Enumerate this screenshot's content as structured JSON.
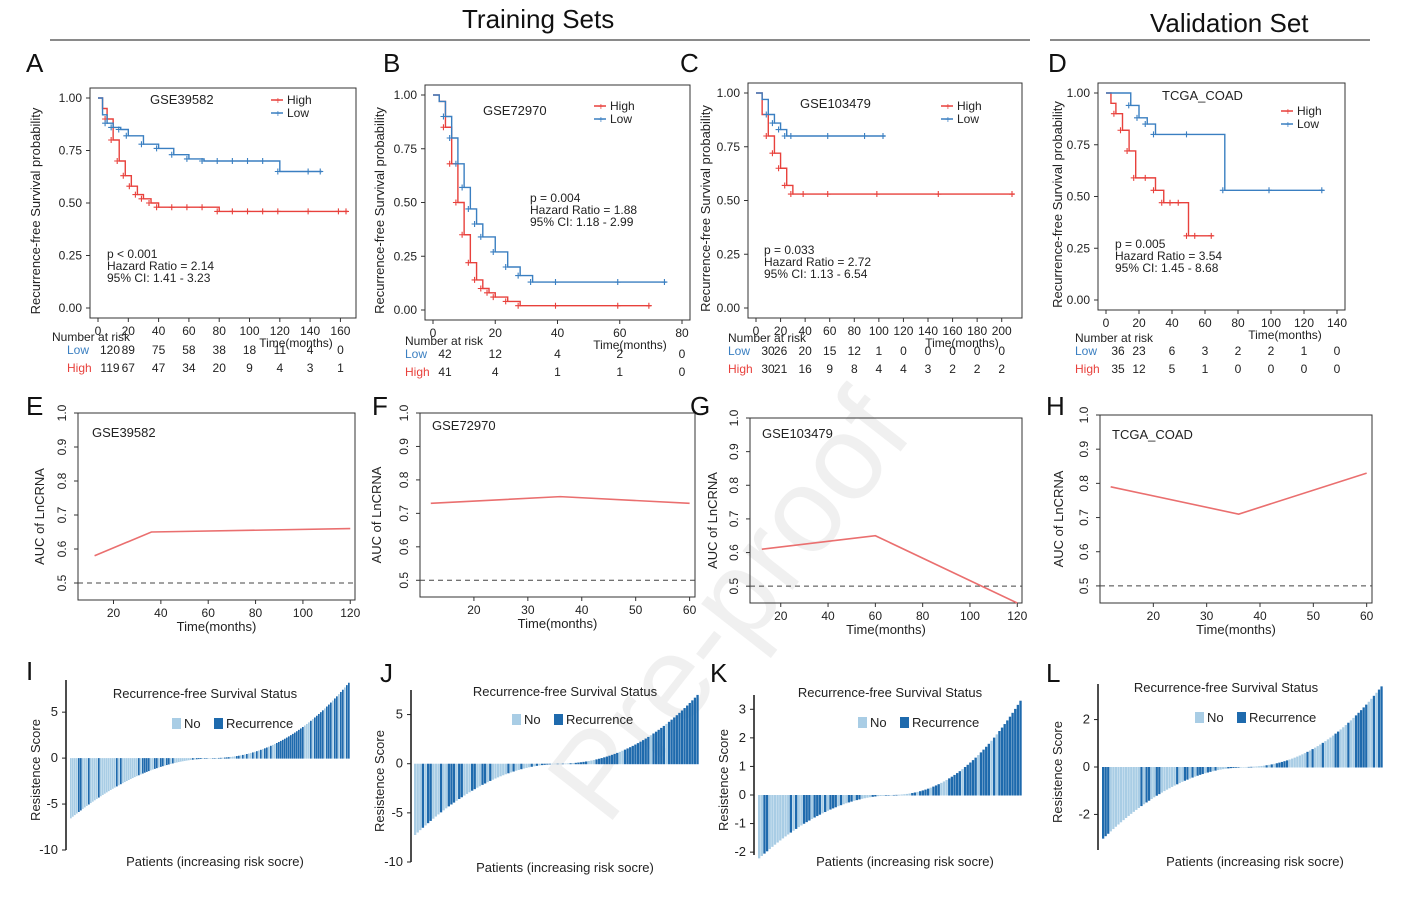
{
  "header": {
    "training_title": "Training Sets",
    "validation_title": "Validation Set"
  },
  "watermark": "Pre-proof",
  "colors": {
    "high": "#e8413c",
    "low": "#3a7fc1",
    "bar_no": "#a9cde5",
    "bar_rec": "#1e6aad",
    "auc": "#ea6f6f"
  },
  "km_common": {
    "y_label": "Recurrence-free Survival probability",
    "x_label": "Time(months)",
    "risk_title": "Number at risk",
    "legend": [
      "High",
      "Low"
    ],
    "y_ticks": [
      "0.00",
      "0.25",
      "0.50",
      "0.75",
      "1.00"
    ]
  },
  "auc_common": {
    "y_label": "AUC of LnCRNA",
    "x_label": "Time(months)",
    "y_ticks": [
      "0.5",
      "0.6",
      "0.7",
      "0.8",
      "0.9",
      "1.0"
    ]
  },
  "wf_common": {
    "title": "Recurrence-free Survival Status",
    "legend": [
      "No",
      "Recurrence"
    ],
    "y_label": "Resistence Score",
    "x_label": "Patients (increasing risk socre)"
  },
  "chart_data": [
    {
      "panel": "A",
      "type": "line",
      "subtype": "kaplan-meier",
      "dataset": "GSE39582",
      "x_ticks": [
        0,
        20,
        40,
        60,
        80,
        100,
        120,
        140,
        160
      ],
      "xlim": [
        0,
        165
      ],
      "ylim": [
        0,
        1
      ],
      "stats": [
        "p < 0.001",
        "Hazard Ratio = 2.14",
        "95% CI: 1.41 - 3.23"
      ],
      "risk_times": [
        0,
        20,
        40,
        60,
        80,
        100,
        120,
        140,
        160
      ],
      "risk": {
        "Low": [
          "120",
          "89",
          "75",
          "58",
          "38",
          "18",
          "11",
          "4",
          "0"
        ],
        "High": [
          "119",
          "67",
          "47",
          "34",
          "20",
          "9",
          "4",
          "3",
          "1"
        ]
      },
      "series": [
        {
          "name": "High",
          "x": [
            0,
            3,
            6,
            10,
            14,
            18,
            22,
            26,
            30,
            35,
            40,
            50,
            60,
            70,
            80,
            90,
            100,
            110,
            120,
            140,
            160,
            165
          ],
          "y": [
            1,
            0.95,
            0.9,
            0.8,
            0.7,
            0.63,
            0.58,
            0.54,
            0.52,
            0.5,
            0.48,
            0.48,
            0.48,
            0.48,
            0.46,
            0.46,
            0.46,
            0.46,
            0.46,
            0.46,
            0.46,
            0.46
          ]
        },
        {
          "name": "Low",
          "x": [
            0,
            3,
            6,
            10,
            15,
            20,
            30,
            40,
            50,
            60,
            70,
            80,
            90,
            100,
            110,
            120,
            140,
            148
          ],
          "y": [
            1,
            0.92,
            0.88,
            0.86,
            0.85,
            0.82,
            0.78,
            0.76,
            0.73,
            0.71,
            0.7,
            0.7,
            0.7,
            0.7,
            0.7,
            0.65,
            0.65,
            0.65
          ]
        }
      ]
    },
    {
      "panel": "B",
      "type": "line",
      "subtype": "kaplan-meier",
      "dataset": "GSE72970",
      "x_ticks": [
        0,
        20,
        40,
        60,
        80
      ],
      "xlim": [
        0,
        80
      ],
      "ylim": [
        0,
        1
      ],
      "stats": [
        "p = 0.004",
        "Hazard Ratio = 1.88",
        "95% CI: 1.18 - 2.99"
      ],
      "risk_times": [
        0,
        20,
        40,
        60,
        80
      ],
      "risk": {
        "Low": [
          "42",
          "12",
          "4",
          "2",
          "0"
        ],
        "High": [
          "41",
          "4",
          "1",
          "1",
          "0"
        ]
      },
      "series": [
        {
          "name": "High",
          "x": [
            0,
            2,
            4,
            6,
            8,
            10,
            12,
            14,
            16,
            18,
            20,
            24,
            28,
            40,
            60,
            70
          ],
          "y": [
            1,
            0.97,
            0.85,
            0.68,
            0.5,
            0.35,
            0.22,
            0.14,
            0.1,
            0.08,
            0.06,
            0.04,
            0.02,
            0.02,
            0.02,
            0.02
          ]
        },
        {
          "name": "Low",
          "x": [
            0,
            2,
            4,
            6,
            8,
            10,
            12,
            14,
            16,
            20,
            24,
            28,
            32,
            40,
            60,
            75
          ],
          "y": [
            1,
            0.97,
            0.9,
            0.8,
            0.68,
            0.57,
            0.47,
            0.4,
            0.34,
            0.27,
            0.2,
            0.16,
            0.13,
            0.13,
            0.13,
            0.13
          ]
        }
      ]
    },
    {
      "panel": "C",
      "type": "line",
      "subtype": "kaplan-meier",
      "dataset": "GSE103479",
      "x_ticks": [
        0,
        20,
        40,
        60,
        80,
        100,
        120,
        140,
        160,
        180,
        200
      ],
      "xlim": [
        0,
        210
      ],
      "ylim": [
        0,
        1
      ],
      "stats": [
        "p = 0.033",
        "Hazard Ratio = 2.72",
        "95% CI: 1.13 - 6.54"
      ],
      "risk_times": [
        0,
        20,
        40,
        60,
        80,
        100,
        120,
        140,
        160,
        180,
        200
      ],
      "risk": {
        "Low": [
          "30",
          "26",
          "20",
          "15",
          "12",
          "1",
          "0",
          "0",
          "0",
          "0",
          "0"
        ],
        "High": [
          "30",
          "21",
          "16",
          "9",
          "8",
          "4",
          "4",
          "3",
          "2",
          "2",
          "2"
        ]
      },
      "series": [
        {
          "name": "High",
          "x": [
            0,
            5,
            10,
            15,
            20,
            25,
            30,
            40,
            60,
            100,
            150,
            210
          ],
          "y": [
            1,
            0.9,
            0.8,
            0.72,
            0.65,
            0.57,
            0.53,
            0.53,
            0.53,
            0.53,
            0.53,
            0.53
          ]
        },
        {
          "name": "Low",
          "x": [
            0,
            5,
            10,
            15,
            20,
            25,
            30,
            60,
            90,
            105
          ],
          "y": [
            1,
            0.97,
            0.9,
            0.86,
            0.83,
            0.8,
            0.8,
            0.8,
            0.8,
            0.8
          ]
        }
      ]
    },
    {
      "panel": "D",
      "type": "line",
      "subtype": "kaplan-meier",
      "dataset": "TCGA_COAD",
      "x_ticks": [
        0,
        20,
        40,
        60,
        80,
        100,
        120,
        140
      ],
      "xlim": [
        0,
        140
      ],
      "ylim": [
        0,
        1
      ],
      "stats": [
        "p = 0.005",
        "Hazard Ratio = 3.54",
        "95% CI: 1.45 - 8.68"
      ],
      "risk_times": [
        0,
        20,
        40,
        60,
        80,
        100,
        120,
        140
      ],
      "risk": {
        "Low": [
          "36",
          "23",
          "6",
          "3",
          "2",
          "2",
          "1",
          "0"
        ],
        "High": [
          "35",
          "12",
          "5",
          "1",
          "0",
          "0",
          "0",
          "0"
        ]
      },
      "series": [
        {
          "name": "High",
          "x": [
            0,
            3,
            6,
            10,
            14,
            18,
            25,
            30,
            35,
            40,
            45,
            50,
            55,
            65
          ],
          "y": [
            1,
            0.95,
            0.9,
            0.82,
            0.72,
            0.59,
            0.59,
            0.53,
            0.47,
            0.47,
            0.47,
            0.31,
            0.31,
            0.31
          ]
        },
        {
          "name": "Low",
          "x": [
            0,
            10,
            15,
            20,
            25,
            30,
            50,
            72,
            100,
            132
          ],
          "y": [
            1,
            1,
            0.94,
            0.88,
            0.85,
            0.8,
            0.8,
            0.53,
            0.53,
            0.53
          ]
        }
      ]
    },
    {
      "panel": "E",
      "type": "line",
      "subtype": "auc",
      "dataset": "GSE39582",
      "x_ticks": [
        20,
        40,
        60,
        80,
        100,
        120
      ],
      "xlim": [
        5,
        122
      ],
      "ylim": [
        0.45,
        1.0
      ],
      "reference": 0.5,
      "x": [
        12,
        36,
        120
      ],
      "y": [
        0.58,
        0.65,
        0.66
      ]
    },
    {
      "panel": "F",
      "type": "line",
      "subtype": "auc",
      "dataset": "GSE72970",
      "x_ticks": [
        20,
        30,
        40,
        50,
        60
      ],
      "xlim": [
        10,
        61
      ],
      "ylim": [
        0.45,
        1.0
      ],
      "reference": 0.5,
      "x": [
        12,
        36,
        60
      ],
      "y": [
        0.73,
        0.75,
        0.73
      ]
    },
    {
      "panel": "G",
      "type": "line",
      "subtype": "auc",
      "dataset": "GSE103479",
      "x_ticks": [
        20,
        40,
        60,
        80,
        100,
        120
      ],
      "xlim": [
        7,
        122
      ],
      "ylim": [
        0.45,
        1.0
      ],
      "reference": 0.5,
      "x": [
        12,
        36,
        60,
        120
      ],
      "y": [
        0.61,
        0.63,
        0.65,
        0.45
      ]
    },
    {
      "panel": "H",
      "type": "line",
      "subtype": "auc",
      "dataset": "TCGA_COAD",
      "x_ticks": [
        20,
        30,
        40,
        50,
        60
      ],
      "xlim": [
        10,
        61
      ],
      "ylim": [
        0.45,
        1.0
      ],
      "reference": 0.5,
      "x": [
        12,
        36,
        60
      ],
      "y": [
        0.79,
        0.71,
        0.83
      ]
    },
    {
      "panel": "I",
      "type": "bar",
      "subtype": "waterfall",
      "ylim": [
        -10,
        8.5
      ],
      "y_ticks": [
        -10,
        -5,
        0,
        5
      ],
      "n": 140,
      "min": -6.5,
      "max": 8.2,
      "rec_fraction": 0.47
    },
    {
      "panel": "J",
      "type": "bar",
      "subtype": "waterfall",
      "ylim": [
        -10,
        7.5
      ],
      "y_ticks": [
        -10,
        -5,
        0,
        5
      ],
      "n": 110,
      "min": -7.2,
      "max": 7.0,
      "rec_fraction": 0.6
    },
    {
      "panel": "K",
      "type": "bar",
      "subtype": "waterfall",
      "ylim": [
        -2.1,
        3.5
      ],
      "y_ticks": [
        -2,
        -1,
        0,
        1,
        2,
        3
      ],
      "n": 100,
      "min": -2.2,
      "max": 3.3,
      "rec_fraction": 0.45
    },
    {
      "panel": "L",
      "type": "bar",
      "subtype": "waterfall",
      "ylim": [
        -3.5,
        3.5
      ],
      "y_ticks": [
        -2,
        0,
        2
      ],
      "n": 110,
      "min": -3.0,
      "max": 3.4,
      "rec_fraction": 0.3
    }
  ]
}
